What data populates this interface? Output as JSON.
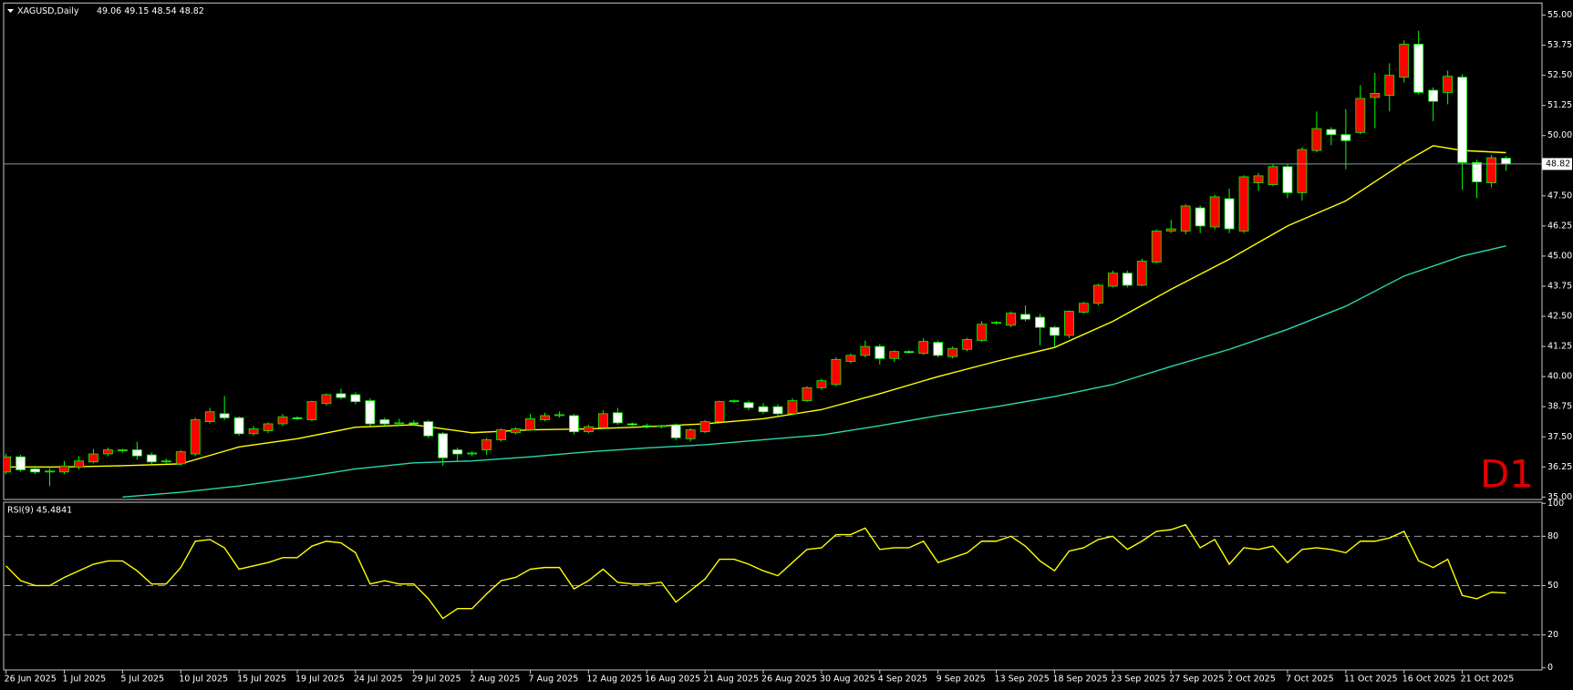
{
  "chart_data": [
    {
      "type": "candlestick",
      "title": "XAGUSD,Daily",
      "quote": "49.06 49.15 48.54 48.82",
      "watermark": "D1",
      "categories": [
        "26 Jun 2025",
        null,
        null,
        null,
        "1 Jul 2025",
        null,
        null,
        null,
        "5 Jul 2025",
        null,
        null,
        null,
        "10 Jul 2025",
        null,
        null,
        null,
        "15 Jul 2025",
        null,
        null,
        null,
        "19 Jul 2025",
        null,
        null,
        null,
        "24 Jul 2025",
        null,
        null,
        null,
        "29 Jul 2025",
        null,
        null,
        null,
        "2 Aug 2025",
        null,
        null,
        null,
        "7 Aug 2025",
        null,
        null,
        null,
        "12 Aug 2025",
        null,
        null,
        null,
        "16 Aug 2025",
        null,
        null,
        null,
        "21 Aug 2025",
        null,
        null,
        null,
        "26 Aug 2025",
        null,
        null,
        null,
        "30 Aug 2025",
        null,
        null,
        null,
        "4 Sep 2025",
        null,
        null,
        null,
        "9 Sep 2025",
        null,
        null,
        null,
        "13 Sep 2025",
        null,
        null,
        null,
        "18 Sep 2025",
        null,
        null,
        null,
        "23 Sep 2025",
        null,
        null,
        null,
        "27 Sep 2025",
        null,
        null,
        null,
        "2 Oct 2025",
        null,
        null,
        null,
        "7 Oct 2025",
        null,
        null,
        null,
        "11 Oct 2025",
        null,
        null,
        null,
        "16 Oct 2025",
        null,
        null,
        null,
        "21 Oct 2025",
        null,
        null,
        null
      ],
      "open": [
        36.04,
        36.67,
        36.17,
        36.04,
        36.04,
        36.25,
        36.46,
        36.79,
        36.92,
        36.96,
        36.75,
        36.46,
        36.38,
        36.79,
        38.13,
        38.46,
        38.29,
        37.63,
        37.75,
        38.04,
        38.29,
        38.21,
        38.88,
        39.29,
        39.25,
        39.0,
        38.21,
        38.04,
        38.08,
        38.13,
        37.63,
        36.96,
        36.79,
        36.96,
        37.38,
        37.67,
        37.79,
        38.21,
        38.38,
        38.38,
        37.71,
        37.88,
        38.5,
        38.04,
        37.96,
        37.92,
        38.0,
        37.42,
        37.71,
        38.13,
        38.96,
        38.92,
        38.75,
        38.75,
        38.46,
        39.0,
        39.54,
        39.67,
        40.63,
        40.88,
        41.25,
        40.75,
        41.04,
        40.96,
        41.42,
        40.83,
        41.13,
        41.5,
        42.21,
        42.13,
        42.58,
        42.46,
        42.04,
        41.71,
        42.67,
        43.04,
        43.75,
        44.29,
        43.79,
        44.75,
        46.04,
        46.04,
        47.0,
        46.21,
        47.38,
        46.04,
        48.04,
        47.96,
        48.71,
        47.63,
        49.38,
        50.25,
        50.04,
        50.13,
        51.58,
        51.67,
        52.42,
        53.79,
        51.88,
        51.79,
        52.42,
        48.88,
        48.04,
        49.06
      ],
      "high": [
        36.8,
        36.75,
        36.3,
        36.2,
        36.5,
        36.7,
        37.0,
        37.05,
        37.0,
        37.3,
        36.85,
        36.6,
        36.95,
        38.3,
        38.7,
        39.2,
        38.35,
        37.95,
        38.1,
        38.45,
        38.35,
        39.0,
        39.3,
        39.5,
        39.35,
        39.1,
        38.3,
        38.25,
        38.2,
        38.2,
        37.7,
        37.05,
        36.9,
        37.45,
        37.85,
        37.9,
        38.45,
        38.5,
        38.55,
        38.45,
        38.0,
        38.6,
        38.7,
        38.1,
        38.05,
        38.0,
        38.05,
        37.85,
        38.2,
        39.0,
        39.05,
        39.0,
        38.9,
        38.85,
        39.1,
        39.6,
        39.9,
        40.8,
        40.95,
        41.5,
        41.35,
        41.1,
        41.1,
        41.6,
        41.5,
        41.25,
        41.6,
        42.3,
        42.3,
        42.7,
        42.95,
        42.6,
        42.1,
        42.75,
        43.1,
        43.85,
        44.4,
        44.4,
        44.9,
        46.1,
        46.5,
        47.15,
        47.1,
        47.55,
        47.8,
        48.35,
        48.45,
        48.8,
        48.8,
        49.5,
        51.0,
        50.35,
        51.1,
        52.1,
        52.6,
        53.0,
        53.95,
        54.35,
        52.0,
        52.7,
        52.55,
        49.0,
        49.2,
        49.15
      ],
      "low": [
        35.95,
        36.05,
        35.95,
        35.45,
        35.95,
        36.15,
        36.4,
        36.7,
        36.85,
        36.55,
        36.35,
        36.4,
        36.3,
        36.7,
        38.05,
        38.2,
        37.55,
        37.55,
        37.65,
        37.95,
        38.2,
        38.15,
        38.8,
        39.05,
        38.85,
        37.95,
        37.95,
        37.95,
        37.95,
        37.45,
        36.3,
        36.5,
        36.7,
        36.75,
        37.3,
        37.6,
        37.75,
        38.15,
        38.3,
        37.6,
        37.65,
        37.8,
        38.0,
        37.95,
        37.85,
        37.85,
        37.35,
        37.3,
        37.65,
        38.05,
        38.9,
        38.6,
        38.45,
        38.35,
        38.4,
        38.95,
        39.45,
        39.6,
        40.55,
        40.8,
        40.5,
        40.6,
        40.95,
        40.9,
        40.8,
        40.75,
        41.05,
        41.45,
        42.15,
        42.05,
        42.3,
        41.3,
        41.25,
        41.6,
        42.6,
        42.95,
        43.7,
        43.7,
        43.75,
        44.7,
        45.95,
        45.9,
        45.95,
        46.1,
        45.95,
        45.95,
        47.7,
        47.9,
        47.4,
        47.3,
        49.3,
        49.6,
        48.6,
        50.05,
        50.3,
        51.0,
        52.2,
        51.7,
        50.6,
        51.3,
        47.75,
        47.4,
        47.85,
        48.54
      ],
      "close": [
        36.67,
        36.13,
        36.04,
        36.08,
        36.29,
        36.5,
        36.79,
        36.96,
        36.96,
        36.71,
        36.46,
        36.5,
        36.88,
        38.21,
        38.54,
        38.29,
        37.63,
        37.83,
        38.04,
        38.33,
        38.25,
        38.96,
        39.25,
        39.13,
        38.96,
        38.04,
        38.04,
        38.08,
        38.04,
        37.54,
        36.63,
        36.79,
        36.83,
        37.38,
        37.79,
        37.83,
        38.25,
        38.38,
        38.42,
        37.71,
        37.92,
        38.46,
        38.08,
        38.0,
        37.92,
        37.96,
        37.46,
        37.79,
        38.13,
        38.96,
        39.0,
        38.71,
        38.54,
        38.46,
        39.0,
        39.54,
        39.83,
        40.71,
        40.88,
        41.25,
        40.75,
        41.04,
        41.0,
        41.46,
        40.88,
        41.17,
        41.54,
        42.17,
        42.25,
        42.63,
        42.38,
        42.04,
        41.71,
        42.71,
        43.04,
        43.79,
        44.29,
        43.79,
        44.79,
        46.04,
        46.13,
        47.08,
        46.25,
        47.46,
        46.13,
        48.29,
        48.33,
        48.71,
        47.63,
        49.42,
        50.29,
        50.04,
        49.79,
        51.54,
        51.75,
        52.5,
        53.79,
        51.79,
        51.42,
        52.46,
        48.88,
        48.08,
        49.08,
        48.82
      ],
      "up_color": "#ff0000",
      "down_color": "#ffffff",
      "wick_color": "#00ff00",
      "series": [
        {
          "color": "#ffff00",
          "x": [
            0,
            4,
            8,
            12,
            16,
            20,
            24,
            28,
            32,
            36,
            40,
            44,
            48,
            52,
            56,
            60,
            64,
            68,
            72,
            76,
            80,
            84,
            88,
            92,
            96,
            98,
            100,
            103
          ],
          "values": [
            36.25,
            36.25,
            36.3,
            36.38,
            37.08,
            37.42,
            37.9,
            38.0,
            37.67,
            37.79,
            37.83,
            37.92,
            38.04,
            38.25,
            38.63,
            39.29,
            40.0,
            40.63,
            41.21,
            42.29,
            43.62,
            44.87,
            46.25,
            47.29,
            48.88,
            49.58,
            49.38,
            49.29
          ]
        },
        {
          "color": "#26d9b0",
          "x": [
            8,
            12,
            16,
            20,
            24,
            28,
            32,
            36,
            40,
            44,
            48,
            52,
            56,
            60,
            64,
            68,
            72,
            76,
            80,
            84,
            88,
            92,
            96,
            100,
            103
          ],
          "values": [
            35.0,
            35.2,
            35.46,
            35.79,
            36.17,
            36.42,
            36.5,
            36.67,
            36.88,
            37.04,
            37.17,
            37.38,
            37.58,
            37.96,
            38.38,
            38.75,
            39.17,
            39.67,
            40.42,
            41.13,
            41.96,
            42.92,
            44.17,
            45.0,
            45.42
          ]
        }
      ],
      "current_price": 48.82,
      "ylim": [
        34.9,
        55.5
      ],
      "yticks": [
        {
          "value": 35,
          "label": "35.00"
        },
        {
          "value": 36.25,
          "label": "36.25"
        },
        {
          "value": 37.5,
          "label": "37.50"
        },
        {
          "value": 38.75,
          "label": "38.75"
        },
        {
          "value": 40,
          "label": "40.00"
        },
        {
          "value": 41.25,
          "label": "41.25"
        },
        {
          "value": 42.5,
          "label": "42.50"
        },
        {
          "value": 43.75,
          "label": "43.75"
        },
        {
          "value": 45,
          "label": "45.00"
        },
        {
          "value": 46.25,
          "label": "46.25"
        },
        {
          "value": 47.5,
          "label": "47.50"
        },
        {
          "value": 48.75,
          "label": "48.75"
        },
        {
          "value": 50,
          "label": "50.00"
        },
        {
          "value": 51.25,
          "label": "51.25"
        },
        {
          "value": 52.5,
          "label": "52.50"
        },
        {
          "value": 53.75,
          "label": "53.75"
        },
        {
          "value": 55,
          "label": "55.00"
        }
      ],
      "grid": false
    },
    {
      "type": "line",
      "title": "RSI(9) 45.4841",
      "color": "#ffff00",
      "values": [
        62,
        53,
        50,
        50,
        55,
        59,
        63,
        65,
        65,
        59,
        51,
        51,
        61,
        77,
        78,
        73,
        60,
        62,
        64,
        67,
        67,
        74,
        77,
        76,
        70,
        51,
        53,
        51,
        51,
        42,
        30,
        36,
        36,
        45,
        53,
        55,
        60,
        61,
        61,
        48,
        53,
        60,
        52,
        51,
        51,
        52,
        40,
        47,
        54,
        66,
        66,
        63,
        59,
        56,
        64,
        72,
        73,
        81,
        81,
        85,
        72,
        73,
        73,
        77,
        64,
        67,
        70,
        77,
        77,
        80,
        74,
        65,
        59,
        71,
        73,
        78,
        80,
        72,
        77,
        83,
        84,
        87,
        73,
        78,
        63,
        73,
        72,
        74,
        64,
        72,
        73,
        72,
        70,
        77,
        77,
        79,
        83,
        65,
        61,
        66,
        44,
        42,
        46,
        45.4841
      ],
      "levels": [
        80,
        50,
        20
      ],
      "ylim": [
        -1.3,
        100.7
      ],
      "yticks": [
        100,
        80,
        50,
        20,
        0
      ],
      "grid": false
    }
  ]
}
